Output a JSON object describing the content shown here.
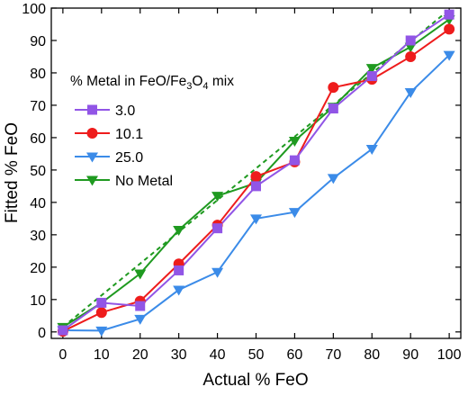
{
  "chart_data": {
    "type": "line",
    "title": "",
    "xlabel": "Actual % FeO",
    "ylabel": "Fitted % FeO",
    "xlim": [
      -3,
      103
    ],
    "ylim": [
      -2,
      100
    ],
    "xticks": [
      0,
      10,
      20,
      30,
      40,
      50,
      60,
      70,
      80,
      90,
      100
    ],
    "yticks": [
      0,
      10,
      20,
      30,
      40,
      50,
      60,
      70,
      80,
      90,
      100
    ],
    "grid": false,
    "legend": {
      "title_parts": [
        "% Metal in FeO/Fe",
        "3",
        "O",
        "4",
        " mix"
      ],
      "placement": "top-left"
    },
    "x": [
      0,
      10,
      20,
      30,
      40,
      50,
      60,
      70,
      80,
      90,
      100
    ],
    "series": [
      {
        "name": "3.0",
        "color": "#9155e6",
        "marker": "square",
        "line": "solid",
        "values": [
          0.5,
          9,
          8,
          19,
          32,
          45,
          53,
          69,
          79,
          90,
          98
        ]
      },
      {
        "name": "10.1",
        "color": "#ee1c1c",
        "marker": "circle",
        "line": "solid",
        "values": [
          0.2,
          6,
          9.5,
          21,
          33,
          48,
          52.5,
          75.5,
          78,
          85,
          93.5
        ]
      },
      {
        "name": "25.0",
        "color": "#3b8be8",
        "marker": "triangle-down",
        "line": "solid",
        "values": [
          0.5,
          0.4,
          4,
          13,
          18.5,
          35,
          37,
          47.5,
          56.5,
          74,
          85.5
        ]
      },
      {
        "name": "No Metal",
        "color": "#1f9a20",
        "marker": "triangle-down",
        "line": "solid",
        "values": [
          1.5,
          9,
          18,
          31.5,
          42,
          46,
          59,
          69.5,
          81.5,
          88,
          96.5
        ]
      }
    ],
    "trendline": {
      "color": "#1f9a20",
      "style": "dashed",
      "x": [
        0,
        100
      ],
      "y": [
        1.5,
        99.5
      ]
    }
  }
}
